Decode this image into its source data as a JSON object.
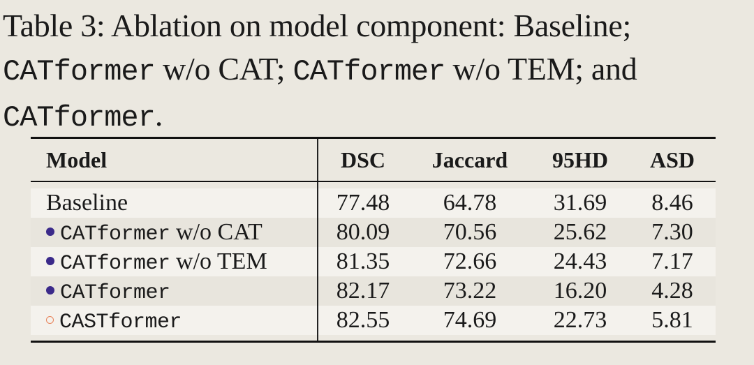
{
  "caption": {
    "parts": [
      "Table 3: Ablation on model component: Baseline;",
      "CATformer",
      " w/o CAT; ",
      "CATformer",
      " w/o TEM; and",
      "CATformer",
      "."
    ]
  },
  "table": {
    "header": [
      "Model",
      "DSC",
      "Jaccard",
      "95HD",
      "ASD"
    ],
    "rows": [
      {
        "name": "Baseline",
        "suffix": null,
        "marker": null,
        "values": [
          "77.48",
          "64.78",
          "31.69",
          "8.46"
        ]
      },
      {
        "name": "CATformer",
        "suffix": "w/o CAT",
        "marker": "filled",
        "values": [
          "80.09",
          "70.56",
          "25.62",
          "7.30"
        ]
      },
      {
        "name": "CATformer",
        "suffix": "w/o TEM",
        "marker": "filled",
        "values": [
          "81.35",
          "72.66",
          "24.43",
          "7.17"
        ]
      },
      {
        "name": "CATformer",
        "suffix": null,
        "marker": "filled",
        "values": [
          "82.17",
          "73.22",
          "16.20",
          "4.28"
        ]
      },
      {
        "name": "CASTformer",
        "suffix": null,
        "marker": "open",
        "values": [
          "82.55",
          "74.69",
          "22.73",
          "5.81"
        ]
      }
    ]
  }
}
